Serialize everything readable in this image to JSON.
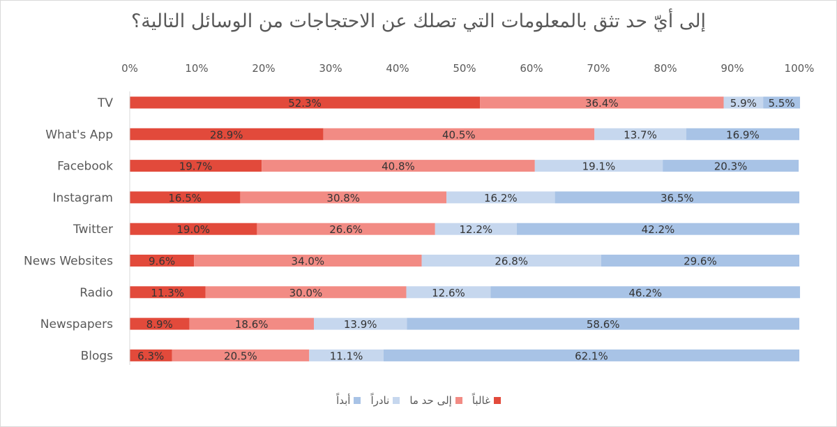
{
  "chart_data": {
    "type": "bar",
    "orientation": "horizontal",
    "stacked": true,
    "title": "إلى أيّ حد تثق بالمعلومات التي تصلك عن الاحتجاجات من الوسائل التالية؟",
    "categories": [
      "TV",
      "What's App",
      "Facebook",
      "Instagram",
      "Twitter",
      "News Websites",
      "Radio",
      "Newspapers",
      "Blogs"
    ],
    "series": [
      {
        "name": "غالباً",
        "color": "#e24a3b",
        "values": [
          52.3,
          28.9,
          19.7,
          16.5,
          19.0,
          9.6,
          11.3,
          8.9,
          6.3
        ]
      },
      {
        "name": "إلى حد ما",
        "color": "#f28b84",
        "values": [
          36.4,
          40.5,
          40.8,
          30.8,
          26.6,
          34.0,
          30.0,
          18.6,
          20.5
        ]
      },
      {
        "name": "نادراً",
        "color": "#c6d7ee",
        "values": [
          5.9,
          13.7,
          19.1,
          16.2,
          12.2,
          26.8,
          12.6,
          13.9,
          11.1
        ]
      },
      {
        "name": "أبداً",
        "color": "#a8c3e6",
        "values": [
          5.5,
          16.9,
          20.3,
          36.5,
          42.2,
          29.6,
          46.2,
          58.6,
          62.1
        ]
      }
    ],
    "x_ticks": [
      "0%",
      "10%",
      "20%",
      "30%",
      "40%",
      "50%",
      "60%",
      "70%",
      "80%",
      "90%",
      "100%"
    ],
    "xlim": [
      0,
      100
    ],
    "x_axis_position": "top",
    "grid": false,
    "legend_position": "bottom"
  }
}
